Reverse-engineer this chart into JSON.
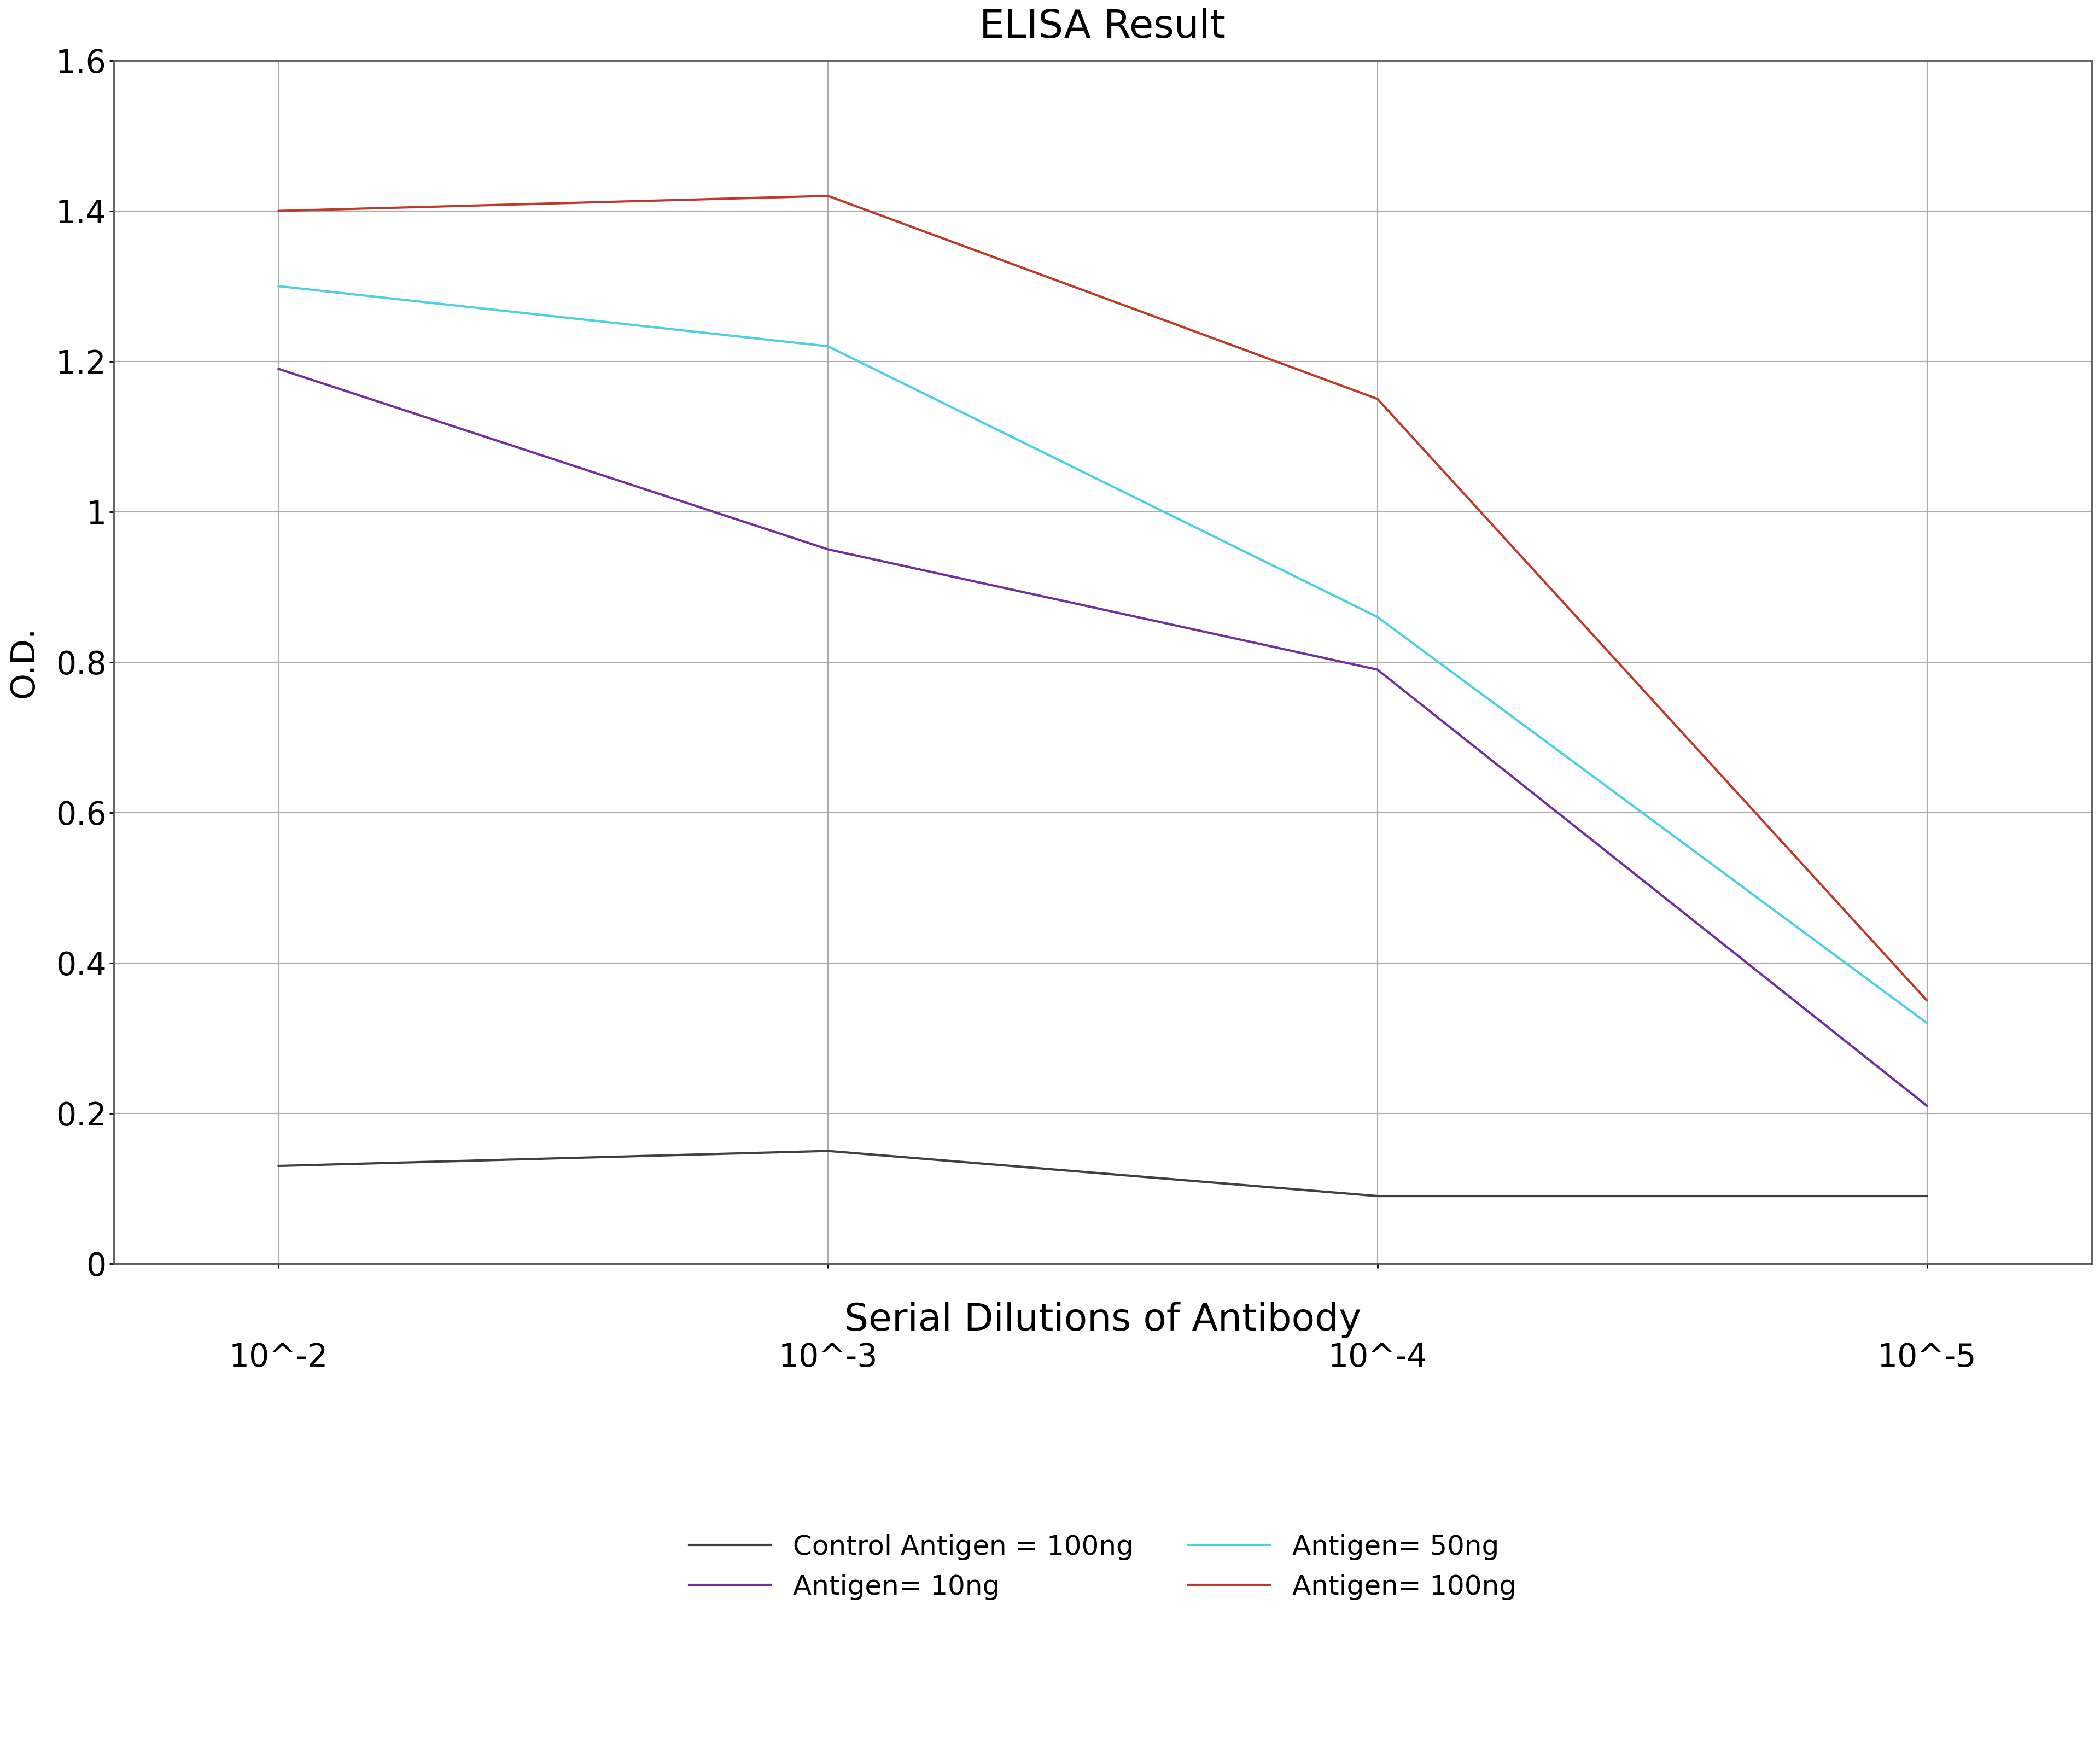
{
  "title": "ELISA Result",
  "ylabel": "O.D.",
  "xlabel": "Serial Dilutions of Antibody",
  "background_color": "#ffffff",
  "x_positions": [
    -2,
    -3,
    -4,
    -5
  ],
  "x_labels": [
    "10^-2",
    "10^-3",
    "10^-4",
    "10^-5"
  ],
  "ylim": [
    0,
    1.6
  ],
  "yticks": [
    0,
    0.2,
    0.4,
    0.6,
    0.8,
    1.0,
    1.2,
    1.4,
    1.6
  ],
  "series": [
    {
      "label": "Control Antigen = 100ng",
      "color": "#404040",
      "linewidth": 3,
      "values": [
        0.13,
        0.15,
        0.09,
        0.09
      ]
    },
    {
      "label": "Antigen= 10ng",
      "color": "#7030a0",
      "linewidth": 3,
      "values": [
        1.19,
        0.95,
        0.79,
        0.21
      ]
    },
    {
      "label": "Antigen= 50ng",
      "color": "#4dd0e1",
      "linewidth": 3,
      "values": [
        1.3,
        1.22,
        0.86,
        0.32
      ]
    },
    {
      "label": "Antigen= 100ng",
      "color": "#c0392b",
      "linewidth": 3,
      "values": [
        1.4,
        1.42,
        1.15,
        0.35
      ]
    }
  ],
  "title_fontsize": 52,
  "ylabel_fontsize": 44,
  "xlabel_fontsize": 50,
  "tick_fontsize": 42,
  "legend_fontsize": 36,
  "grid_color": "#aaaaaa",
  "axis_color": "#555555"
}
